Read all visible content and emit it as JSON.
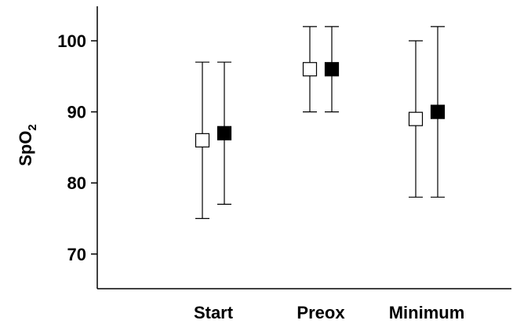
{
  "chart_data": {
    "type": "scatter",
    "categories": [
      "Start",
      "Preox",
      "Minimum"
    ],
    "ylabel": "SpO",
    "ylabel_subscript": "2",
    "ylim": [
      65,
      105
    ],
    "yticks": [
      70,
      80,
      90,
      100
    ],
    "legend": "none",
    "grid": false,
    "series": [
      {
        "marker": "open-square",
        "color": "#ffffff",
        "values": [
          86,
          96,
          89
        ],
        "lower": [
          75,
          90,
          78
        ],
        "upper": [
          97,
          102,
          100
        ]
      },
      {
        "marker": "filled-square",
        "color": "#000000",
        "values": [
          87,
          96,
          90
        ],
        "lower": [
          77,
          90,
          78
        ],
        "upper": [
          97,
          102,
          102
        ]
      }
    ]
  }
}
